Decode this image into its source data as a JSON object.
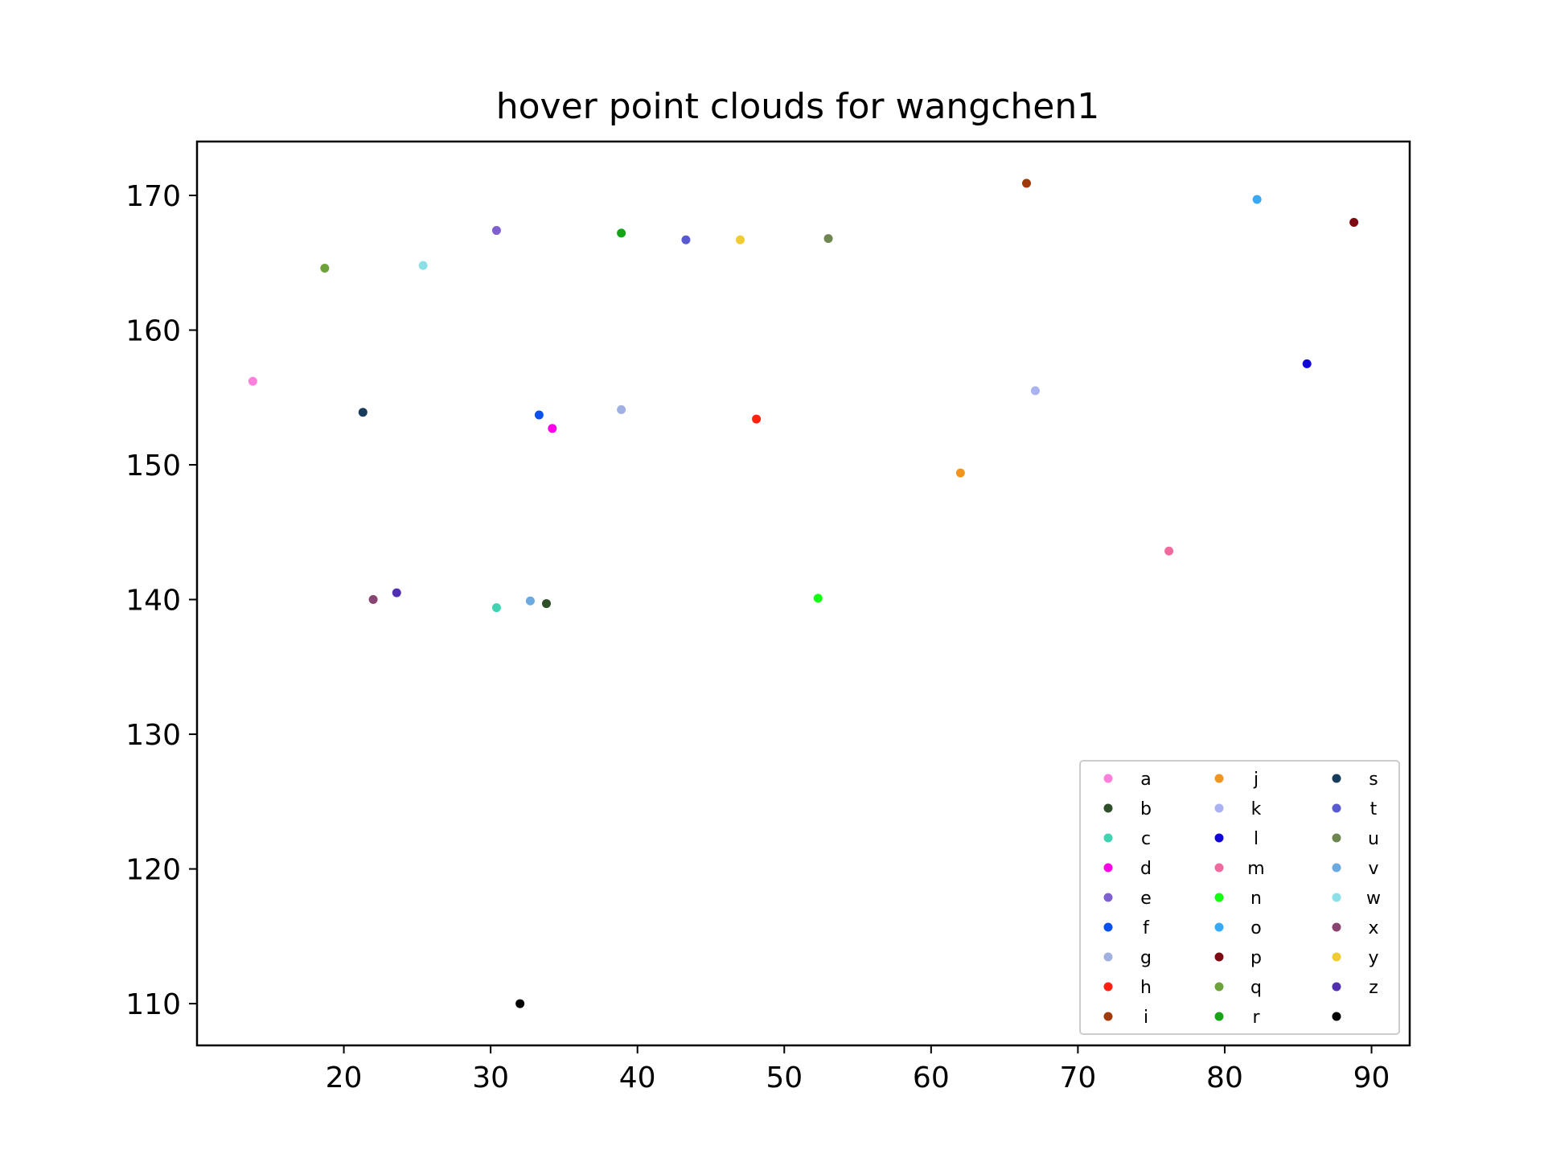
{
  "chart_data": {
    "type": "scatter",
    "title": "hover point clouds for wangchen1",
    "xlabel": "",
    "ylabel": "",
    "xlim": [
      10,
      92.6
    ],
    "ylim": [
      106.9,
      174
    ],
    "xticks": [
      20,
      30,
      40,
      50,
      60,
      70,
      80,
      90
    ],
    "yticks": [
      110,
      120,
      130,
      140,
      150,
      160,
      170
    ],
    "grid": false,
    "legend": {
      "placement": "lower-right",
      "columns": 3
    },
    "series": [
      {
        "name": "a",
        "color": "#ff7fdc",
        "x": [
          13.8
        ],
        "y": [
          156.2
        ]
      },
      {
        "name": "b",
        "color": "#2f4f2a",
        "x": [
          33.8
        ],
        "y": [
          139.7
        ]
      },
      {
        "name": "c",
        "color": "#3fd3b3",
        "x": [
          30.4
        ],
        "y": [
          139.4
        ]
      },
      {
        "name": "d",
        "color": "#ff00e6",
        "x": [
          34.2
        ],
        "y": [
          152.7
        ]
      },
      {
        "name": "e",
        "color": "#8060d0",
        "x": [
          30.4
        ],
        "y": [
          167.4
        ]
      },
      {
        "name": "f",
        "color": "#0a4ff0",
        "x": [
          33.3
        ],
        "y": [
          153.7
        ]
      },
      {
        "name": "g",
        "color": "#a0b0e0",
        "x": [
          38.9
        ],
        "y": [
          154.1
        ]
      },
      {
        "name": "h",
        "color": "#ff2010",
        "x": [
          48.1
        ],
        "y": [
          153.4
        ]
      },
      {
        "name": "i",
        "color": "#a03a0a",
        "x": [
          66.5
        ],
        "y": [
          170.9
        ]
      },
      {
        "name": "j",
        "color": "#f0961e",
        "x": [
          62.0
        ],
        "y": [
          149.4
        ]
      },
      {
        "name": "k",
        "color": "#aab2f2",
        "x": [
          67.1
        ],
        "y": [
          155.5
        ]
      },
      {
        "name": "l",
        "color": "#1006d8",
        "x": [
          85.6
        ],
        "y": [
          157.5
        ]
      },
      {
        "name": "m",
        "color": "#f06aa0",
        "x": [
          76.2
        ],
        "y": [
          143.6
        ]
      },
      {
        "name": "n",
        "color": "#12ff12",
        "x": [
          52.3
        ],
        "y": [
          140.1
        ]
      },
      {
        "name": "o",
        "color": "#38aaf5",
        "x": [
          82.2
        ],
        "y": [
          169.7
        ]
      },
      {
        "name": "p",
        "color": "#7e0a14",
        "x": [
          88.8
        ],
        "y": [
          168.0
        ]
      },
      {
        "name": "q",
        "color": "#6ea33c",
        "x": [
          18.7
        ],
        "y": [
          164.6
        ]
      },
      {
        "name": "r",
        "color": "#16a316",
        "x": [
          38.9
        ],
        "y": [
          167.2
        ]
      },
      {
        "name": "s",
        "color": "#1a3c5c",
        "x": [
          21.3
        ],
        "y": [
          153.9
        ]
      },
      {
        "name": "t",
        "color": "#5a5ad0",
        "x": [
          43.3
        ],
        "y": [
          166.7
        ]
      },
      {
        "name": "u",
        "color": "#6e8650",
        "x": [
          53.0
        ],
        "y": [
          166.8
        ]
      },
      {
        "name": "v",
        "color": "#6aaae0",
        "x": [
          32.7
        ],
        "y": [
          139.9
        ]
      },
      {
        "name": "w",
        "color": "#8ae0e6",
        "x": [
          25.4
        ],
        "y": [
          164.8
        ]
      },
      {
        "name": "x",
        "color": "#884470",
        "x": [
          22.0
        ],
        "y": [
          140.0
        ]
      },
      {
        "name": "y",
        "color": "#f0cc30",
        "x": [
          47.0
        ],
        "y": [
          166.7
        ]
      },
      {
        "name": "z",
        "color": "#5030b0",
        "x": [
          23.6
        ],
        "y": [
          140.5
        ]
      },
      {
        "name": "",
        "color": "#000000",
        "x": [
          32.0
        ],
        "y": [
          110.0
        ]
      }
    ]
  }
}
